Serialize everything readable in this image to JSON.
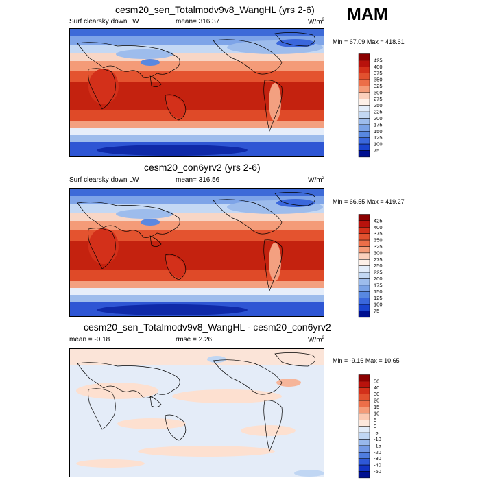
{
  "season": "MAM",
  "panels": [
    {
      "title": "cesm20_sen_Totalmodv9v8_WangHL (yrs 2-6)",
      "variable": "Surf clearsky down LW",
      "mean_label": "mean=",
      "mean_value": "316.37",
      "rmse_label": "",
      "rmse_value": "",
      "units_base": "W/m",
      "units_exp": "2",
      "min_label": "Min =",
      "min_value": "67.09",
      "max_label": "Max =",
      "max_value": "418.61",
      "colorbar_labels": [
        "425",
        "400",
        "375",
        "350",
        "325",
        "300",
        "275",
        "250",
        "225",
        "200",
        "175",
        "150",
        "125",
        "100",
        "75"
      ],
      "colorbar_colors": [
        "#8b0000",
        "#b8120c",
        "#d3301a",
        "#e2512f",
        "#ec6e48",
        "#f49b78",
        "#fbd0bc",
        "#fdf0e8",
        "#e3edfa",
        "#c3d8f3",
        "#9dbcec",
        "#7aa2e6",
        "#5888e1",
        "#3a67dc",
        "#1a44cf",
        "#001090"
      ]
    },
    {
      "title": "cesm20_con6yrv2 (yrs 2-6)",
      "variable": "Surf clearsky down LW",
      "mean_label": "mean=",
      "mean_value": "316.56",
      "rmse_label": "",
      "rmse_value": "",
      "units_base": "W/m",
      "units_exp": "2",
      "min_label": "Min =",
      "min_value": "66.55",
      "max_label": "Max =",
      "max_value": "419.27",
      "colorbar_labels": [
        "425",
        "400",
        "375",
        "350",
        "325",
        "300",
        "275",
        "250",
        "225",
        "200",
        "175",
        "150",
        "125",
        "100",
        "75"
      ],
      "colorbar_colors": [
        "#8b0000",
        "#b8120c",
        "#d3301a",
        "#e2512f",
        "#ec6e48",
        "#f49b78",
        "#fbd0bc",
        "#fdf0e8",
        "#e3edfa",
        "#c3d8f3",
        "#9dbcec",
        "#7aa2e6",
        "#5888e1",
        "#3a67dc",
        "#1a44cf",
        "#001090"
      ]
    },
    {
      "title": "cesm20_sen_Totalmodv9v8_WangHL - cesm20_con6yrv2",
      "variable": "",
      "mean_label": "mean =",
      "mean_value": "-0.18",
      "rmse_label": "rmse =",
      "rmse_value": "2.26",
      "units_base": "W/m",
      "units_exp": "2",
      "min_label": "Min =",
      "min_value": "-9.16",
      "max_label": "Max =",
      "max_value": "10.65",
      "colorbar_labels": [
        "50",
        "40",
        "30",
        "20",
        "15",
        "10",
        "5",
        "0",
        "-5",
        "-10",
        "-15",
        "-20",
        "-30",
        "-40",
        "-50"
      ],
      "colorbar_colors": [
        "#8b0000",
        "#b8120c",
        "#d3301a",
        "#e2512f",
        "#ec6e48",
        "#f49b78",
        "#fbc9b2",
        "#fde8dc",
        "#e2ecf9",
        "#c0d6f3",
        "#98b8ec",
        "#7399e5",
        "#4f7ddf",
        "#2e58d7",
        "#1234c4",
        "#001090"
      ]
    }
  ]
}
